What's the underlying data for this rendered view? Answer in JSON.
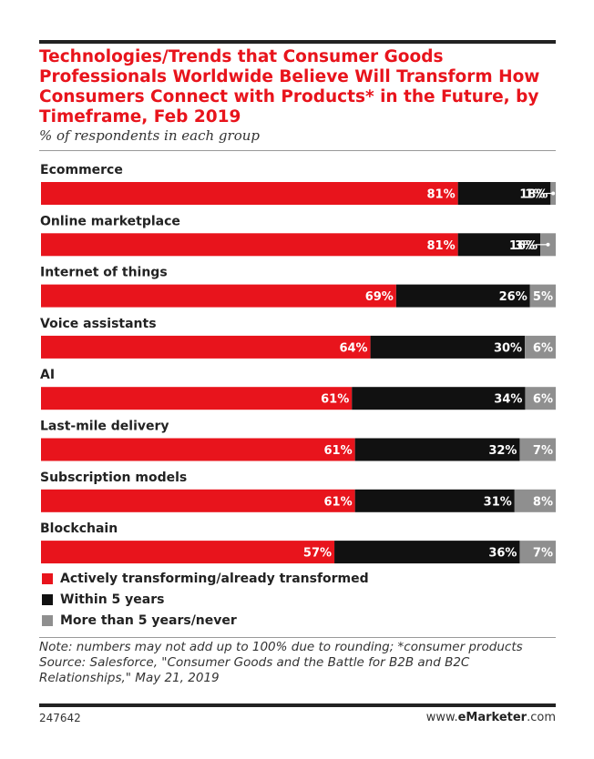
{
  "header": {
    "title": "Technologies/Trends that Consumer Goods Professionals Worldwide Believe Will Transform How Consumers Connect with Products* in the Future, by Timeframe, Feb 2019",
    "subtitle": "% of respondents in each group"
  },
  "chart_data": {
    "type": "bar",
    "orientation": "horizontal",
    "stacked": true,
    "unit": "%",
    "categories": [
      "Ecommerce",
      "Online marketplace",
      "Internet of things",
      "Voice assistants",
      "AI",
      "Last-mile delivery",
      "Subscription models",
      "Blockchain"
    ],
    "series": [
      {
        "name": "Actively transforming/already transformed",
        "color": "#e8141c",
        "values": [
          81,
          81,
          69,
          64,
          61,
          61,
          61,
          57
        ]
      },
      {
        "name": "Within 5 years",
        "color": "#111111",
        "values": [
          18,
          16,
          26,
          30,
          34,
          32,
          31,
          36
        ]
      },
      {
        "name": "More than 5 years/never",
        "color": "#8f8f8f",
        "values": [
          1,
          3,
          5,
          6,
          6,
          7,
          8,
          7
        ]
      }
    ],
    "xlim": [
      0,
      100
    ],
    "legend": "bottom"
  },
  "legend": [
    {
      "label": "Actively transforming/already transformed",
      "color": "#e8141c"
    },
    {
      "label": "Within 5 years",
      "color": "#111111"
    },
    {
      "label": "More than 5 years/never",
      "color": "#8f8f8f"
    }
  ],
  "footer": {
    "note": "Note: numbers may not add up to 100% due to rounding; *consumer products",
    "source": "Source: Salesforce, \"Consumer Goods and the Battle for B2B and B2C Relationships,\" May 21, 2019",
    "chart_id": "247642",
    "brand_prefix": "www.",
    "brand_name": "eMarketer",
    "brand_suffix": ".com"
  }
}
